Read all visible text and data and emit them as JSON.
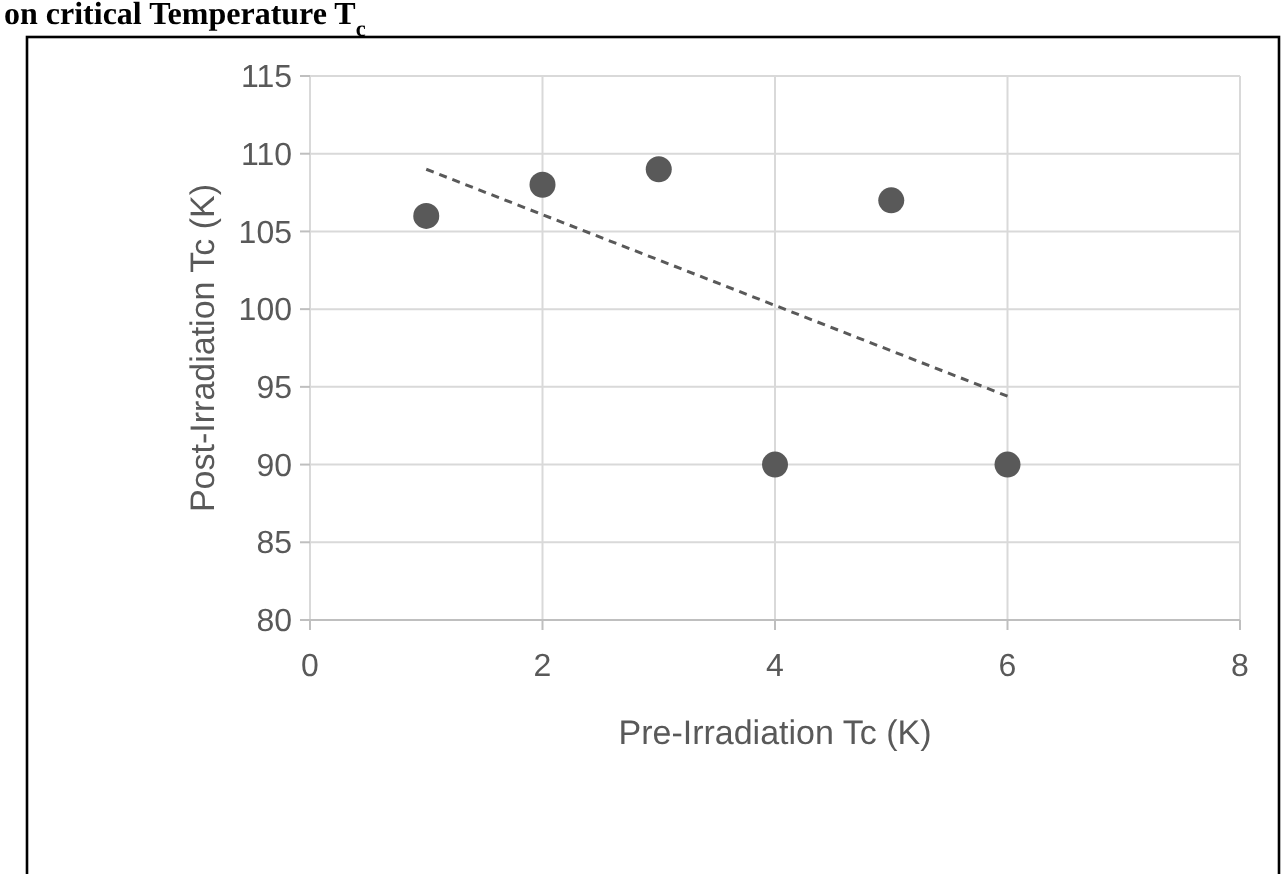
{
  "chart_data": {
    "type": "scatter",
    "title": "on critical Temperature T$_{c}$",
    "xlabel": "Pre-Irradiation Tc (K)",
    "ylabel": "Post-Irradiation Tc (K)",
    "x": [
      1,
      2,
      3,
      4,
      5,
      6
    ],
    "series": [
      {
        "color": "#595959",
        "values": [
          106,
          108,
          109,
          90,
          107,
          90
        ],
        "marker": "circle"
      },
      {
        "type": "line",
        "color": "#595959",
        "x": [
          1,
          6
        ],
        "values": [
          109,
          94.4
        ],
        "line_style": "dashed",
        "marker": "none"
      }
    ],
    "xlim": [
      0,
      8
    ],
    "xticks": [
      0,
      2,
      4,
      6,
      8
    ],
    "ylim": [
      80,
      115
    ],
    "yticks": [
      80,
      85,
      90,
      95,
      100,
      105,
      110,
      115
    ],
    "grid": true
  }
}
